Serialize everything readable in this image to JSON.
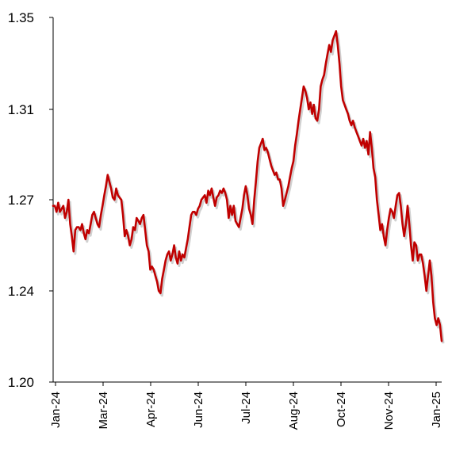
{
  "chart_data": {
    "type": "line",
    "title": "",
    "xlabel": "",
    "ylabel": "",
    "ylim": [
      1.2,
      1.35
    ],
    "y_ticks": [
      {
        "value": 1.2,
        "label": "1.20"
      },
      {
        "value": 1.24,
        "label": "1.24"
      },
      {
        "value": 1.27,
        "label": "1.27"
      },
      {
        "value": 1.31,
        "label": "1.31"
      },
      {
        "value": 1.35,
        "label": "1.35"
      }
    ],
    "x_ticks": [
      "Jan-24",
      "Mar-24",
      "Apr-24",
      "Jun-24",
      "Jul-24",
      "Aug-24",
      "Oct-24",
      "Nov-24",
      "Jan-25"
    ],
    "grid": false,
    "line_color": "#c00000",
    "series": [
      {
        "values": [
          1.268,
          1.268,
          1.266,
          1.269,
          1.266,
          1.267,
          1.268,
          1.264,
          1.266,
          1.27,
          1.262,
          1.258,
          1.253,
          1.26,
          1.261,
          1.261,
          1.26,
          1.262,
          1.259,
          1.257,
          1.26,
          1.259,
          1.262,
          1.265,
          1.266,
          1.264,
          1.262,
          1.261,
          1.265,
          1.268,
          1.272,
          1.276,
          1.281,
          1.278,
          1.275,
          1.271,
          1.27,
          1.275,
          1.272,
          1.271,
          1.27,
          1.265,
          1.258,
          1.26,
          1.258,
          1.255,
          1.257,
          1.261,
          1.26,
          1.264,
          1.263,
          1.262,
          1.264,
          1.265,
          1.26,
          1.255,
          1.253,
          1.247,
          1.248,
          1.247,
          1.245,
          1.243,
          1.24,
          1.239,
          1.244,
          1.247,
          1.25,
          1.252,
          1.253,
          1.25,
          1.252,
          1.255,
          1.251,
          1.249,
          1.253,
          1.25,
          1.252,
          1.251,
          1.254,
          1.257,
          1.261,
          1.265,
          1.266,
          1.266,
          1.265,
          1.267,
          1.268,
          1.27,
          1.271,
          1.272,
          1.269,
          1.274,
          1.272,
          1.275,
          1.271,
          1.268,
          1.271,
          1.272,
          1.274,
          1.273,
          1.275,
          1.273,
          1.27,
          1.264,
          1.268,
          1.265,
          1.268,
          1.263,
          1.262,
          1.261,
          1.264,
          1.267,
          1.272,
          1.276,
          1.272,
          1.267,
          1.265,
          1.262,
          1.27,
          1.278,
          1.287,
          1.293,
          1.295,
          1.297,
          1.292,
          1.293,
          1.291,
          1.288,
          1.285,
          1.283,
          1.281,
          1.282,
          1.279,
          1.279,
          1.275,
          1.268,
          1.27,
          1.273,
          1.276,
          1.28,
          1.284,
          1.287,
          1.294,
          1.299,
          1.305,
          1.31,
          1.315,
          1.32,
          1.318,
          1.315,
          1.31,
          1.313,
          1.308,
          1.312,
          1.306,
          1.305,
          1.31,
          1.32,
          1.323,
          1.325,
          1.33,
          1.334,
          1.338,
          1.335,
          1.34,
          1.342,
          1.344,
          1.338,
          1.33,
          1.32,
          1.314,
          1.312,
          1.31,
          1.308,
          1.305,
          1.303,
          1.305,
          1.302,
          1.3,
          1.298,
          1.296,
          1.294,
          1.297,
          1.293,
          1.296,
          1.29,
          1.3,
          1.293,
          1.284,
          1.28,
          1.27,
          1.265,
          1.26,
          1.262,
          1.258,
          1.255,
          1.26,
          1.264,
          1.267,
          1.266,
          1.264,
          1.268,
          1.272,
          1.273,
          1.268,
          1.262,
          1.258,
          1.262,
          1.268,
          1.262,
          1.255,
          1.25,
          1.256,
          1.255,
          1.25,
          1.252,
          1.252,
          1.249,
          1.245,
          1.24,
          1.245,
          1.25,
          1.245,
          1.235,
          1.228,
          1.225,
          1.228,
          1.225,
          1.218
        ]
      }
    ]
  }
}
